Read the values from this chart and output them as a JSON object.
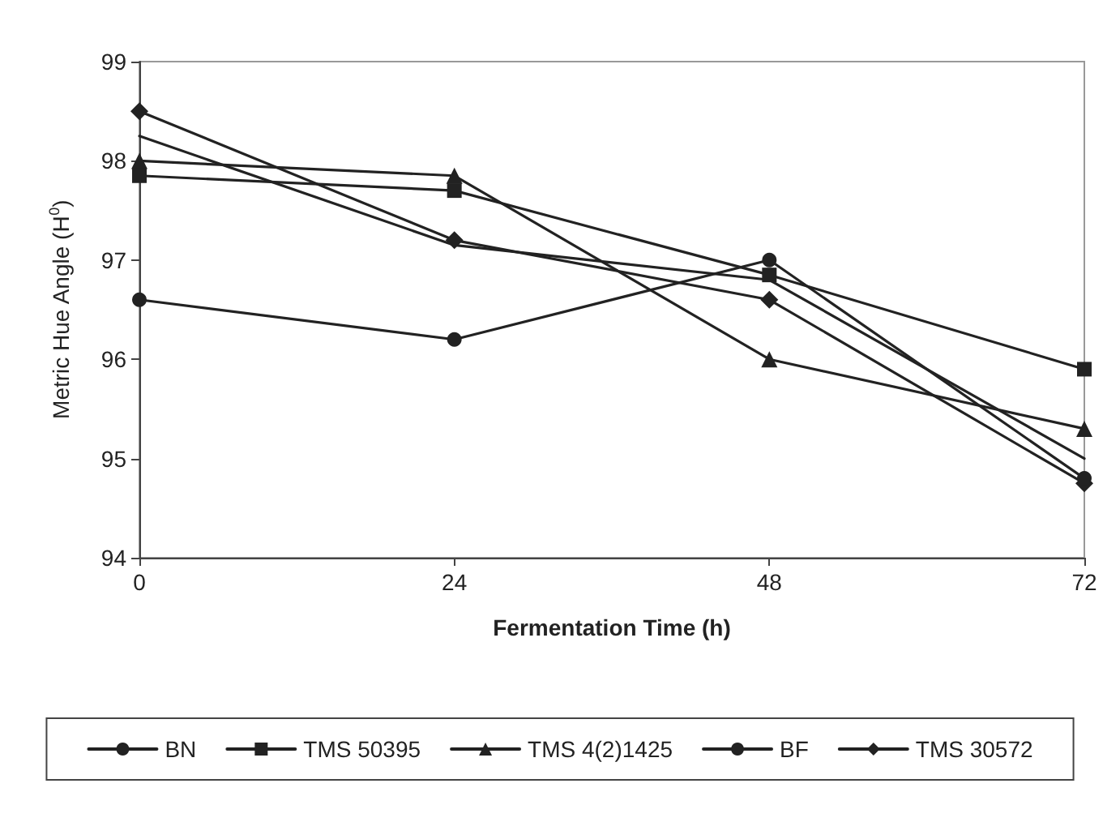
{
  "chart_data": {
    "type": "line",
    "xlabel": "Fermentation Time (h)",
    "ylabel": "Metric Hue Angle (H$^{0}$)",
    "x": [
      0,
      24,
      48,
      72
    ],
    "xlim": [
      0,
      72
    ],
    "xticks": [
      0,
      24,
      48,
      72
    ],
    "ylim": [
      94,
      99
    ],
    "yticks": [
      94,
      95,
      96,
      97,
      98,
      99
    ],
    "grid": false,
    "legend": "bottom",
    "line_style": "solid",
    "series": [
      {
        "name": "BN",
        "color": "#222222",
        "marker": "circle",
        "values": [
          96.6,
          96.2,
          97.0,
          94.8
        ]
      },
      {
        "name": "TMS 50395",
        "color": "#222222",
        "marker": "square",
        "values": [
          97.85,
          97.7,
          96.85,
          95.9
        ]
      },
      {
        "name": "TMS 4(2)1425",
        "color": "#222222",
        "marker": "triangle",
        "values": [
          98.0,
          97.85,
          96.0,
          95.3
        ]
      },
      {
        "name": "BF",
        "color": "#222222",
        "marker": "none",
        "values": [
          98.25,
          97.15,
          96.8,
          95.0
        ]
      },
      {
        "name": "TMS 30572",
        "color": "#222222",
        "marker": "diamond",
        "values": [
          98.5,
          97.2,
          96.6,
          94.75
        ]
      }
    ]
  }
}
